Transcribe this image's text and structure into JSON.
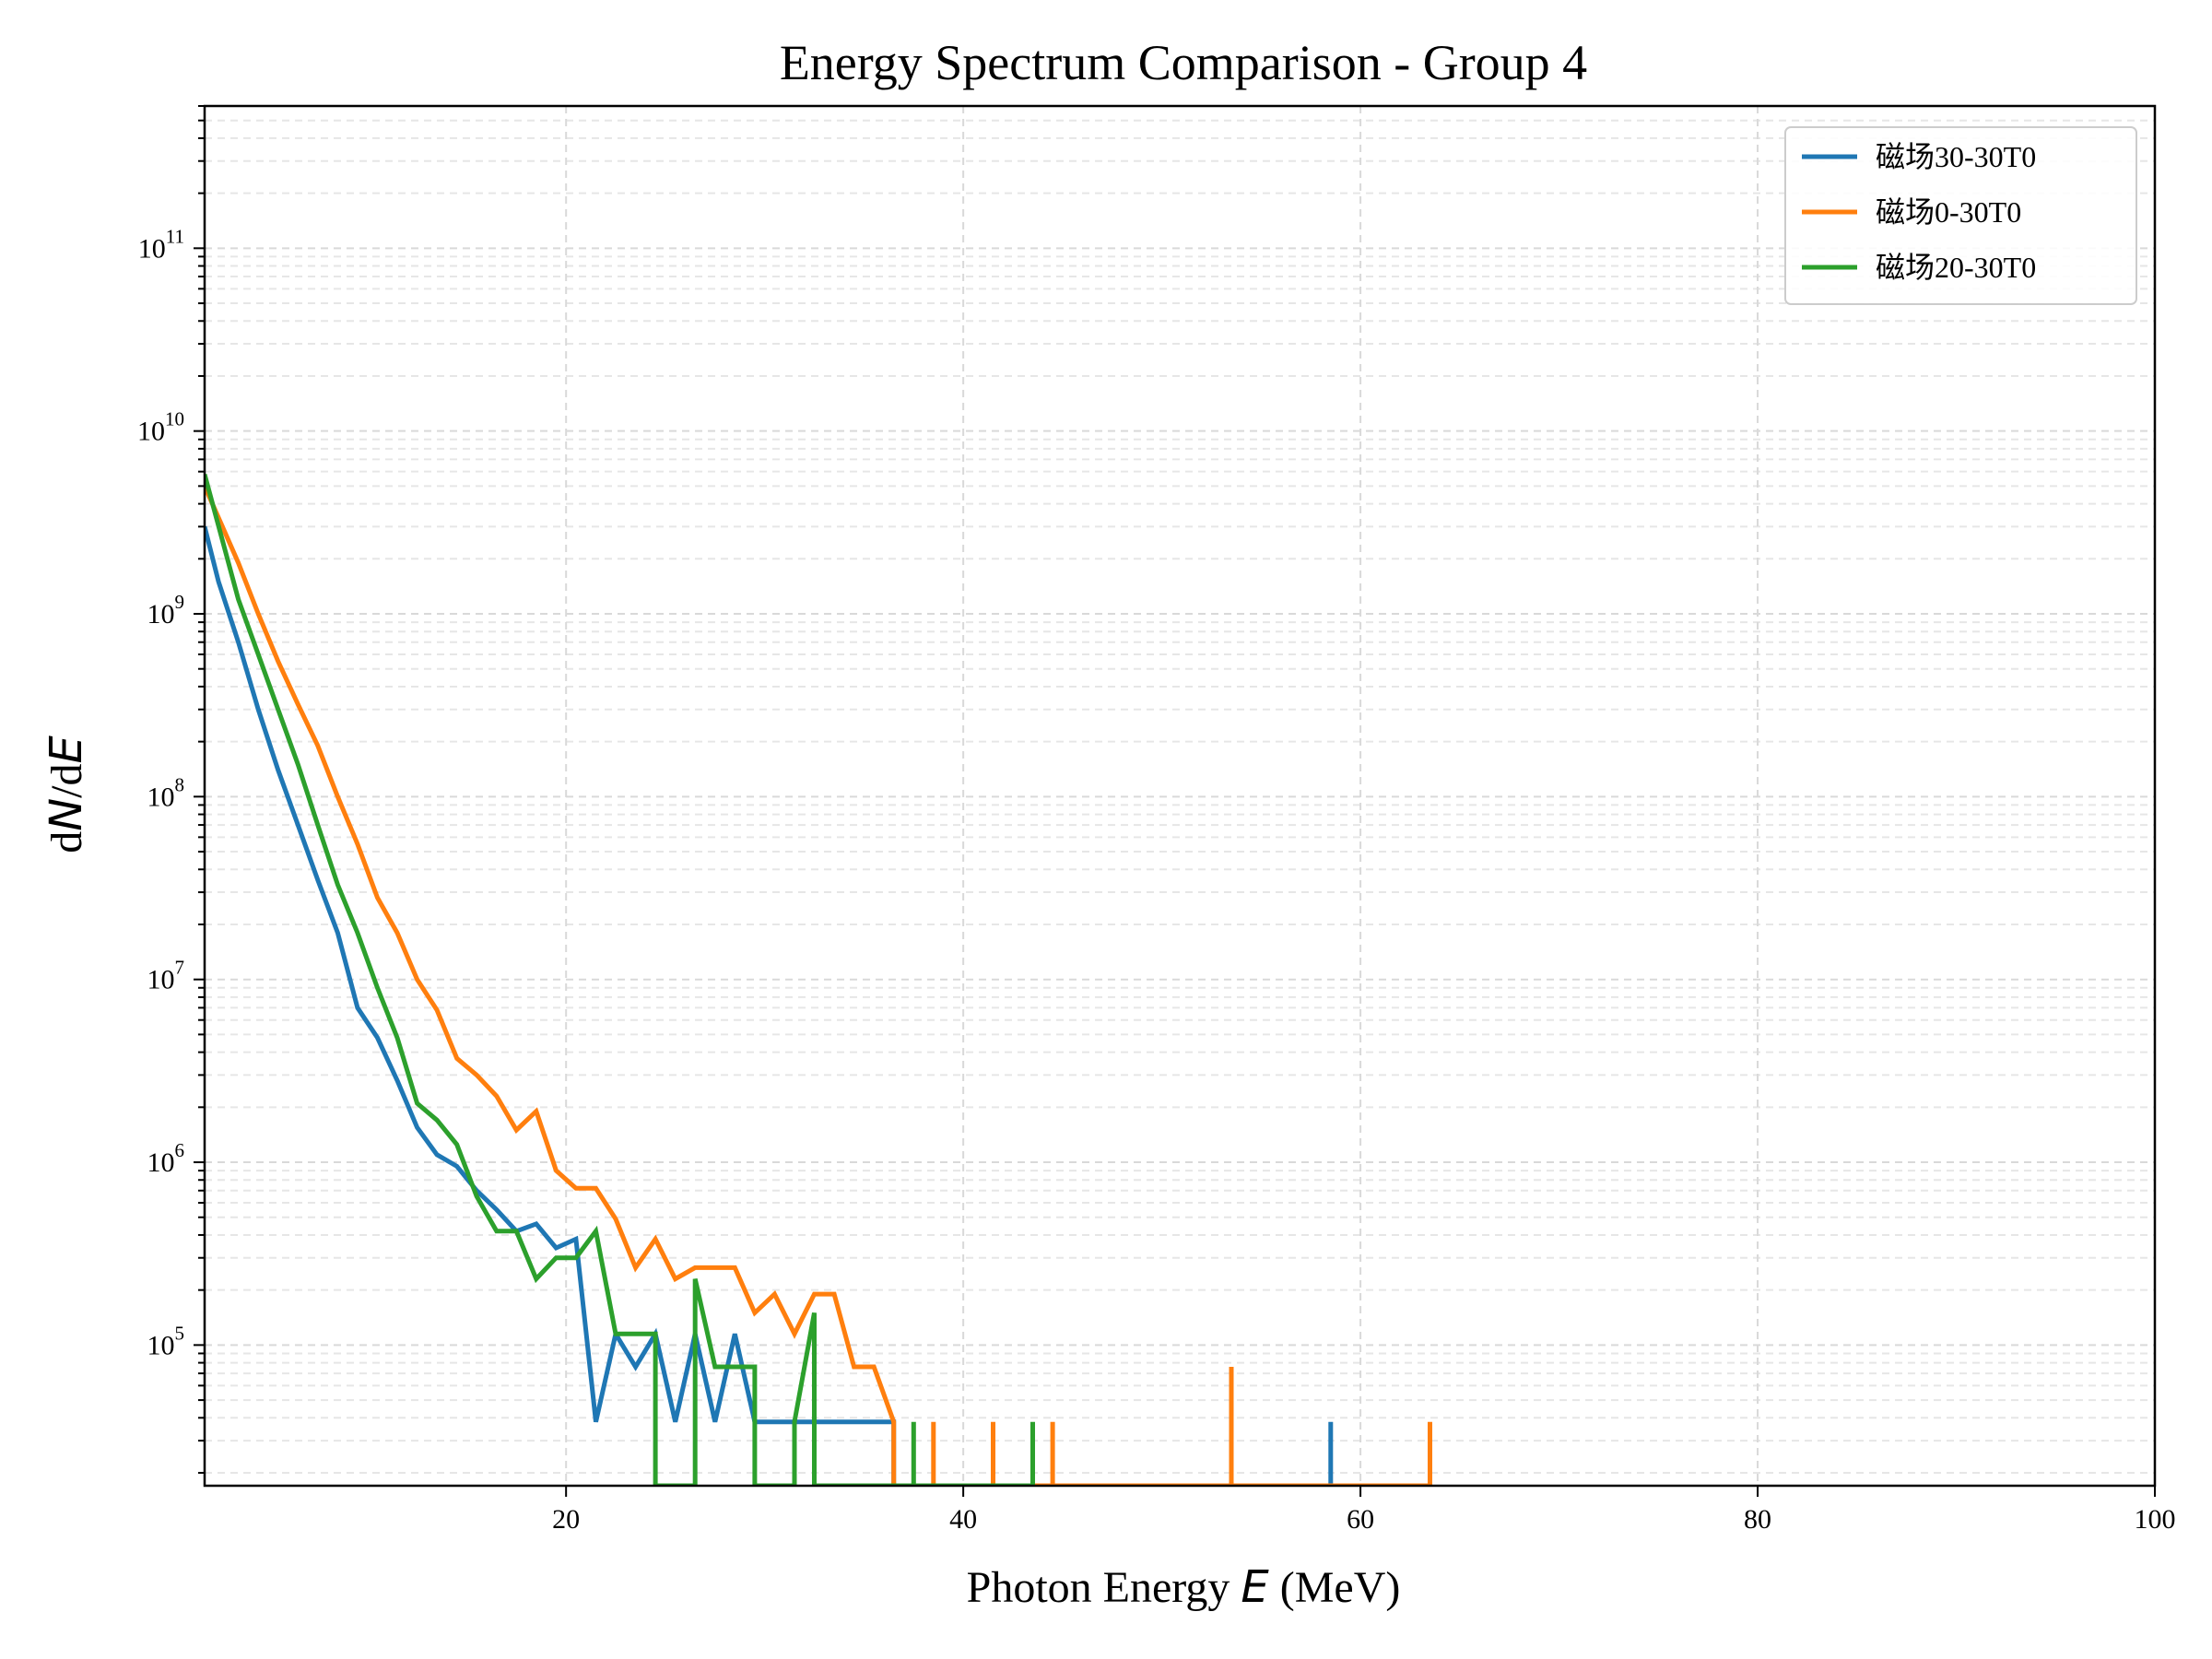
{
  "chart_data": {
    "type": "line",
    "title": "Energy Spectrum Comparison - Group 4",
    "xlabel_prefix": "Photon Energy ",
    "xlabel_var": "E",
    "xlabel_suffix": " (MeV)",
    "ylabel_prefix": "d",
    "ylabel_var1": "N",
    "ylabel_mid": "/d",
    "ylabel_var2": "E",
    "xlim": [
      1.8,
      100
    ],
    "ylim": [
      17000.0,
      600000000000.0
    ],
    "yscale": "log",
    "grid": true,
    "legend_position": "top-right",
    "x_ticks": [
      {
        "value": 20,
        "label": "20"
      },
      {
        "value": 40,
        "label": "40"
      },
      {
        "value": 60,
        "label": "60"
      },
      {
        "value": 80,
        "label": "80"
      },
      {
        "value": 100,
        "label": "100"
      }
    ],
    "y_ticks": [
      {
        "exp": 5,
        "base": "10",
        "sup": "5"
      },
      {
        "exp": 6,
        "base": "10",
        "sup": "6"
      },
      {
        "exp": 7,
        "base": "10",
        "sup": "7"
      },
      {
        "exp": 8,
        "base": "10",
        "sup": "8"
      },
      {
        "exp": 9,
        "base": "10",
        "sup": "9"
      },
      {
        "exp": 10,
        "base": "10",
        "sup": "10"
      },
      {
        "exp": 11,
        "base": "10",
        "sup": "11"
      }
    ],
    "series": [
      {
        "name": "磁场30-30T0",
        "color": "#1f77b4",
        "points": [
          [
            1.8,
            3000000000.0
          ],
          [
            2.5,
            1500000000.0
          ],
          [
            3.5,
            700000000.0
          ],
          [
            4.5,
            300000000.0
          ],
          [
            5.5,
            140000000.0
          ],
          [
            6.5,
            70000000.0
          ],
          [
            7.5,
            35000000.0
          ],
          [
            8.5,
            18000000.0
          ],
          [
            9.5,
            7000000.0
          ],
          [
            10.5,
            4800000.0
          ],
          [
            11.5,
            2800000.0
          ],
          [
            12.5,
            1550000.0
          ],
          [
            13.5,
            1100000.0
          ],
          [
            14.5,
            950000.0
          ],
          [
            15.5,
            700000.0
          ],
          [
            16.5,
            550000.0
          ],
          [
            17.5,
            420000.0
          ],
          [
            18.5,
            460000.0
          ],
          [
            19.5,
            340000.0
          ],
          [
            20.5,
            380000.0
          ],
          [
            21.5,
            38000.0
          ],
          [
            22.5,
            115000.0
          ],
          [
            23.5,
            76000.0
          ],
          [
            24.5,
            115000.0
          ],
          [
            25.5,
            38000.0
          ],
          [
            26.5,
            115000.0
          ],
          [
            27.5,
            38000.0
          ],
          [
            28.5,
            115000.0
          ],
          [
            29.5,
            38000.0
          ],
          [
            30.5,
            38000.0
          ],
          [
            31.5,
            38000.0
          ],
          [
            32.5,
            38000.0
          ],
          [
            34.5,
            38000.0
          ],
          [
            36.5,
            38000.0
          ],
          [
            36.5,
            17000.0
          ],
          [
            58.5,
            17000.0
          ],
          [
            58.5,
            38000.0
          ],
          [
            58.5,
            17000.0
          ]
        ]
      },
      {
        "name": "磁场0-30T0",
        "color": "#ff7f0e",
        "points": [
          [
            1.8,
            5000000000.0
          ],
          [
            3.5,
            1900000000.0
          ],
          [
            4.5,
            1000000000.0
          ],
          [
            5.5,
            550000000.0
          ],
          [
            6.5,
            320000000.0
          ],
          [
            7.5,
            190000000.0
          ],
          [
            8.5,
            100000000.0
          ],
          [
            9.5,
            55000000.0
          ],
          [
            10.5,
            28000000.0
          ],
          [
            11.5,
            18000000.0
          ],
          [
            12.5,
            10000000.0
          ],
          [
            13.5,
            6800000.0
          ],
          [
            14.5,
            3700000.0
          ],
          [
            15.5,
            3000000.0
          ],
          [
            16.5,
            2300000.0
          ],
          [
            17.5,
            1500000.0
          ],
          [
            18.5,
            1900000.0
          ],
          [
            19.5,
            900000.0
          ],
          [
            20.5,
            720000.0
          ],
          [
            21.5,
            720000.0
          ],
          [
            22.5,
            490000.0
          ],
          [
            23.5,
            265000.0
          ],
          [
            24.5,
            380000.0
          ],
          [
            25.5,
            230000.0
          ],
          [
            26.5,
            265000.0
          ],
          [
            27.5,
            265000.0
          ],
          [
            28.5,
            265000.0
          ],
          [
            29.5,
            150000.0
          ],
          [
            30.5,
            190000.0
          ],
          [
            31.5,
            115000.0
          ],
          [
            32.5,
            190000.0
          ],
          [
            33.5,
            190000.0
          ],
          [
            34.5,
            76000.0
          ],
          [
            35.5,
            76000.0
          ],
          [
            36.5,
            38000.0
          ],
          [
            36.5,
            17000.0
          ],
          [
            38.5,
            17000.0
          ],
          [
            38.5,
            38000.0
          ],
          [
            38.5,
            17000.0
          ],
          [
            41.5,
            17000.0
          ],
          [
            41.5,
            38000.0
          ],
          [
            41.5,
            17000.0
          ],
          [
            44.5,
            17000.0
          ],
          [
            44.5,
            38000.0
          ],
          [
            44.5,
            17000.0
          ],
          [
            53.5,
            17000.0
          ],
          [
            53.5,
            76000.0
          ],
          [
            53.5,
            17000.0
          ],
          [
            63.5,
            17000.0
          ],
          [
            63.5,
            38000.0
          ],
          [
            63.5,
            17000.0
          ]
        ]
      },
      {
        "name": "磁场20-30T0",
        "color": "#2ca02c",
        "points": [
          [
            1.8,
            5800000000.0
          ],
          [
            3.5,
            1200000000.0
          ],
          [
            4.5,
            600000000.0
          ],
          [
            5.5,
            300000000.0
          ],
          [
            6.5,
            150000000.0
          ],
          [
            7.5,
            70000000.0
          ],
          [
            8.5,
            33000000.0
          ],
          [
            9.5,
            18000000.0
          ],
          [
            10.5,
            9000000.0
          ],
          [
            11.5,
            4800000.0
          ],
          [
            12.5,
            2100000.0
          ],
          [
            13.5,
            1700000.0
          ],
          [
            14.5,
            1250000.0
          ],
          [
            15.5,
            650000.0
          ],
          [
            16.5,
            420000.0
          ],
          [
            17.5,
            420000.0
          ],
          [
            18.5,
            230000.0
          ],
          [
            19.5,
            300000.0
          ],
          [
            20.5,
            300000.0
          ],
          [
            21.5,
            420000.0
          ],
          [
            22.5,
            115000.0
          ],
          [
            23.5,
            115000.0
          ],
          [
            24.5,
            115000.0
          ],
          [
            24.5,
            17000.0
          ],
          [
            26.5,
            17000.0
          ],
          [
            26.5,
            230000.0
          ],
          [
            27.5,
            76000.0
          ],
          [
            28.5,
            76000.0
          ],
          [
            29.5,
            76000.0
          ],
          [
            29.5,
            17000.0
          ],
          [
            31.5,
            17000.0
          ],
          [
            31.5,
            38000.0
          ],
          [
            32.5,
            150000.0
          ],
          [
            32.5,
            17000.0
          ],
          [
            37.5,
            17000.0
          ],
          [
            37.5,
            38000.0
          ],
          [
            37.5,
            17000.0
          ],
          [
            43.5,
            17000.0
          ],
          [
            43.5,
            38000.0
          ],
          [
            43.5,
            17000.0
          ]
        ]
      }
    ]
  }
}
